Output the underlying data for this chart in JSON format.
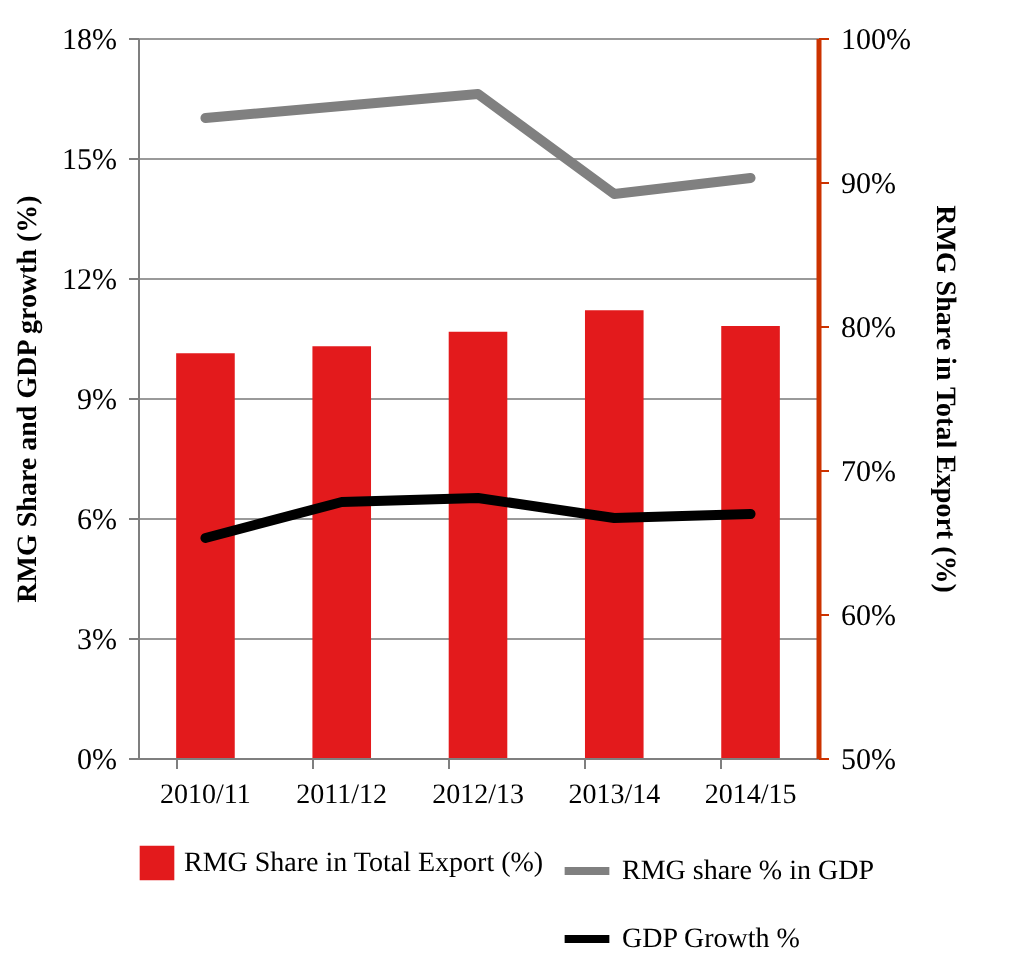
{
  "chart_data": {
    "type": "bar",
    "categories": [
      "2010/11",
      "2011/12",
      "2012/13",
      "2013/14",
      "2014/15"
    ],
    "series": [
      {
        "name": "RMG Share in Total Export (%)",
        "axis": "y2",
        "color": "#e31a1c",
        "values": [
          78.1,
          78.6,
          79.6,
          81.1,
          80.0
        ]
      },
      {
        "name": "RMG share % in GDP",
        "type": "line",
        "color": "#808080",
        "values": [
          16.0,
          16.3,
          16.6,
          14.1,
          14.5
        ]
      },
      {
        "name": "GDP Growth %",
        "type": "line",
        "color": "#000000",
        "values": [
          5.5,
          6.4,
          6.5,
          6.0,
          6.1
        ]
      }
    ],
    "ylabel": "RMG Share and GDP growth (%)",
    "y2label": "RMG Share in  Total Export (%)",
    "ylim": [
      0,
      18
    ],
    "yticks": [
      {
        "value": 0,
        "label": "0%"
      },
      {
        "value": 3,
        "label": "3%"
      },
      {
        "value": 6,
        "label": "6%"
      },
      {
        "value": 9,
        "label": "9%"
      },
      {
        "value": 12,
        "label": "12%"
      },
      {
        "value": 15,
        "label": "15%"
      },
      {
        "value": 18,
        "label": "18%"
      }
    ],
    "y2lim": [
      50,
      100
    ],
    "y2ticks": [
      {
        "value": 50,
        "label": "50%"
      },
      {
        "value": 60,
        "label": "60%"
      },
      {
        "value": 70,
        "label": "70%"
      },
      {
        "value": 80,
        "label": "80%"
      },
      {
        "value": 90,
        "label": "90%"
      },
      {
        "value": 100,
        "label": "100%"
      }
    ],
    "grid": "y",
    "legend": "bottom"
  }
}
